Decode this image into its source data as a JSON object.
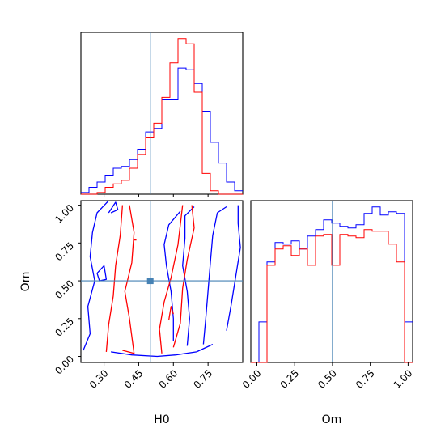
{
  "chart_data": {
    "type": "corner",
    "parameters": [
      "H0",
      "Om"
    ],
    "truth": {
      "H0": 0.5,
      "Om": 0.5
    },
    "colors": {
      "series_a": "#0000ff",
      "series_b": "#ff0000",
      "truth": "#4682b4"
    },
    "axes": {
      "H0": {
        "label": "H0",
        "range": [
          0.2,
          0.9
        ],
        "ticks": [
          0.3,
          0.45,
          0.6,
          0.75
        ],
        "tick_labels": [
          "0.30",
          "0.45",
          "0.60",
          "0.75"
        ]
      },
      "Om": {
        "label": "Om",
        "range": [
          -0.04,
          1.03
        ],
        "ticks": [
          0.0,
          0.25,
          0.5,
          0.75,
          1.0
        ],
        "tick_labels": [
          "0.00",
          "0.25",
          "0.50",
          "0.75",
          "1.00"
        ]
      }
    },
    "hist_H0": {
      "bin_edges": [
        0.2,
        0.235,
        0.27,
        0.305,
        0.34,
        0.375,
        0.41,
        0.445,
        0.48,
        0.515,
        0.55,
        0.585,
        0.62,
        0.655,
        0.69,
        0.725,
        0.76,
        0.795,
        0.83,
        0.865,
        0.9
      ],
      "series_a": [
        1,
        4,
        7,
        11,
        15,
        16,
        20,
        26,
        36,
        38,
        55,
        55,
        73,
        72,
        64,
        48,
        30,
        18,
        7,
        2
      ],
      "series_b": [
        0,
        0,
        1,
        4,
        6,
        8,
        15,
        23,
        33,
        41,
        56,
        76,
        90,
        87,
        59,
        12,
        2,
        0,
        0,
        0
      ]
    },
    "hist_Om": {
      "bin_edges": [
        -0.04,
        0.0135,
        0.067,
        0.1205,
        0.174,
        0.2275,
        0.281,
        0.3345,
        0.388,
        0.4415,
        0.495,
        0.5485,
        0.602,
        0.6555,
        0.709,
        0.7625,
        0.816,
        0.8695,
        0.923,
        0.9765,
        1.03
      ],
      "series_a": [
        0,
        25,
        62,
        74,
        73,
        75,
        70,
        78,
        82,
        88,
        86,
        84,
        83,
        85,
        92,
        96,
        91,
        93,
        92,
        25
      ],
      "series_b": [
        0,
        0,
        60,
        70,
        72,
        66,
        70,
        60,
        78,
        79,
        60,
        79,
        78,
        77,
        82,
        81,
        81,
        73,
        62,
        0
      ]
    },
    "contours_H0_Om": {
      "series_a": [
        [
          [
            0.21,
            0.04
          ],
          [
            0.24,
            0.15
          ],
          [
            0.23,
            0.33
          ],
          [
            0.26,
            0.5
          ],
          [
            0.24,
            0.66
          ],
          [
            0.25,
            0.82
          ],
          [
            0.27,
            0.95
          ],
          [
            0.32,
            1.03
          ]
        ],
        [
          [
            0.33,
            0.03
          ],
          [
            0.42,
            0.01
          ],
          [
            0.53,
            0.0
          ],
          [
            0.61,
            0.01
          ],
          [
            0.7,
            0.03
          ],
          [
            0.77,
            0.08
          ]
        ],
        [
          [
            0.6,
            0.1
          ],
          [
            0.6,
            0.25
          ],
          [
            0.59,
            0.43
          ],
          [
            0.57,
            0.6
          ],
          [
            0.56,
            0.74
          ],
          [
            0.58,
            0.87
          ],
          [
            0.63,
            0.96
          ]
        ],
        [
          [
            0.66,
            0.07
          ],
          [
            0.67,
            0.25
          ],
          [
            0.66,
            0.43
          ],
          [
            0.64,
            0.6
          ],
          [
            0.65,
            0.78
          ],
          [
            0.65,
            0.93
          ],
          [
            0.69,
            0.99
          ]
        ],
        [
          [
            0.73,
            0.08
          ],
          [
            0.74,
            0.25
          ],
          [
            0.75,
            0.43
          ],
          [
            0.76,
            0.62
          ],
          [
            0.77,
            0.8
          ],
          [
            0.79,
            0.95
          ],
          [
            0.83,
            0.99
          ]
        ],
        [
          [
            0.83,
            0.17
          ],
          [
            0.85,
            0.34
          ],
          [
            0.87,
            0.53
          ],
          [
            0.89,
            0.72
          ],
          [
            0.88,
            0.88
          ],
          [
            0.88,
            1.0
          ]
        ],
        [
          [
            0.32,
            0.95
          ],
          [
            0.35,
            1.02
          ],
          [
            0.36,
            0.97
          ],
          [
            0.33,
            0.95
          ]
        ],
        [
          [
            0.27,
            0.55
          ],
          [
            0.3,
            0.6
          ],
          [
            0.31,
            0.51
          ],
          [
            0.28,
            0.5
          ],
          [
            0.27,
            0.55
          ]
        ]
      ],
      "series_b": [
        [
          [
            0.31,
            0.03
          ],
          [
            0.32,
            0.21
          ],
          [
            0.34,
            0.4
          ],
          [
            0.35,
            0.6
          ],
          [
            0.37,
            0.8
          ],
          [
            0.38,
            1.0
          ]
        ],
        [
          [
            0.38,
            0.04
          ],
          [
            0.43,
            0.02
          ],
          [
            0.41,
            0.25
          ],
          [
            0.39,
            0.43
          ],
          [
            0.42,
            0.62
          ],
          [
            0.43,
            0.82
          ],
          [
            0.41,
            1.0
          ]
        ],
        [
          [
            0.55,
            0.02
          ],
          [
            0.54,
            0.18
          ],
          [
            0.56,
            0.36
          ],
          [
            0.59,
            0.52
          ],
          [
            0.62,
            0.74
          ],
          [
            0.64,
            1.0
          ]
        ],
        [
          [
            0.6,
            0.06
          ],
          [
            0.63,
            0.22
          ],
          [
            0.64,
            0.45
          ],
          [
            0.66,
            0.64
          ],
          [
            0.69,
            0.85
          ],
          [
            0.68,
            1.0
          ]
        ],
        [
          [
            0.58,
            0.24
          ],
          [
            0.59,
            0.33
          ],
          [
            0.6,
            0.28
          ]
        ],
        [
          [
            0.43,
            0.77
          ],
          [
            0.44,
            0.77
          ]
        ]
      ]
    }
  }
}
